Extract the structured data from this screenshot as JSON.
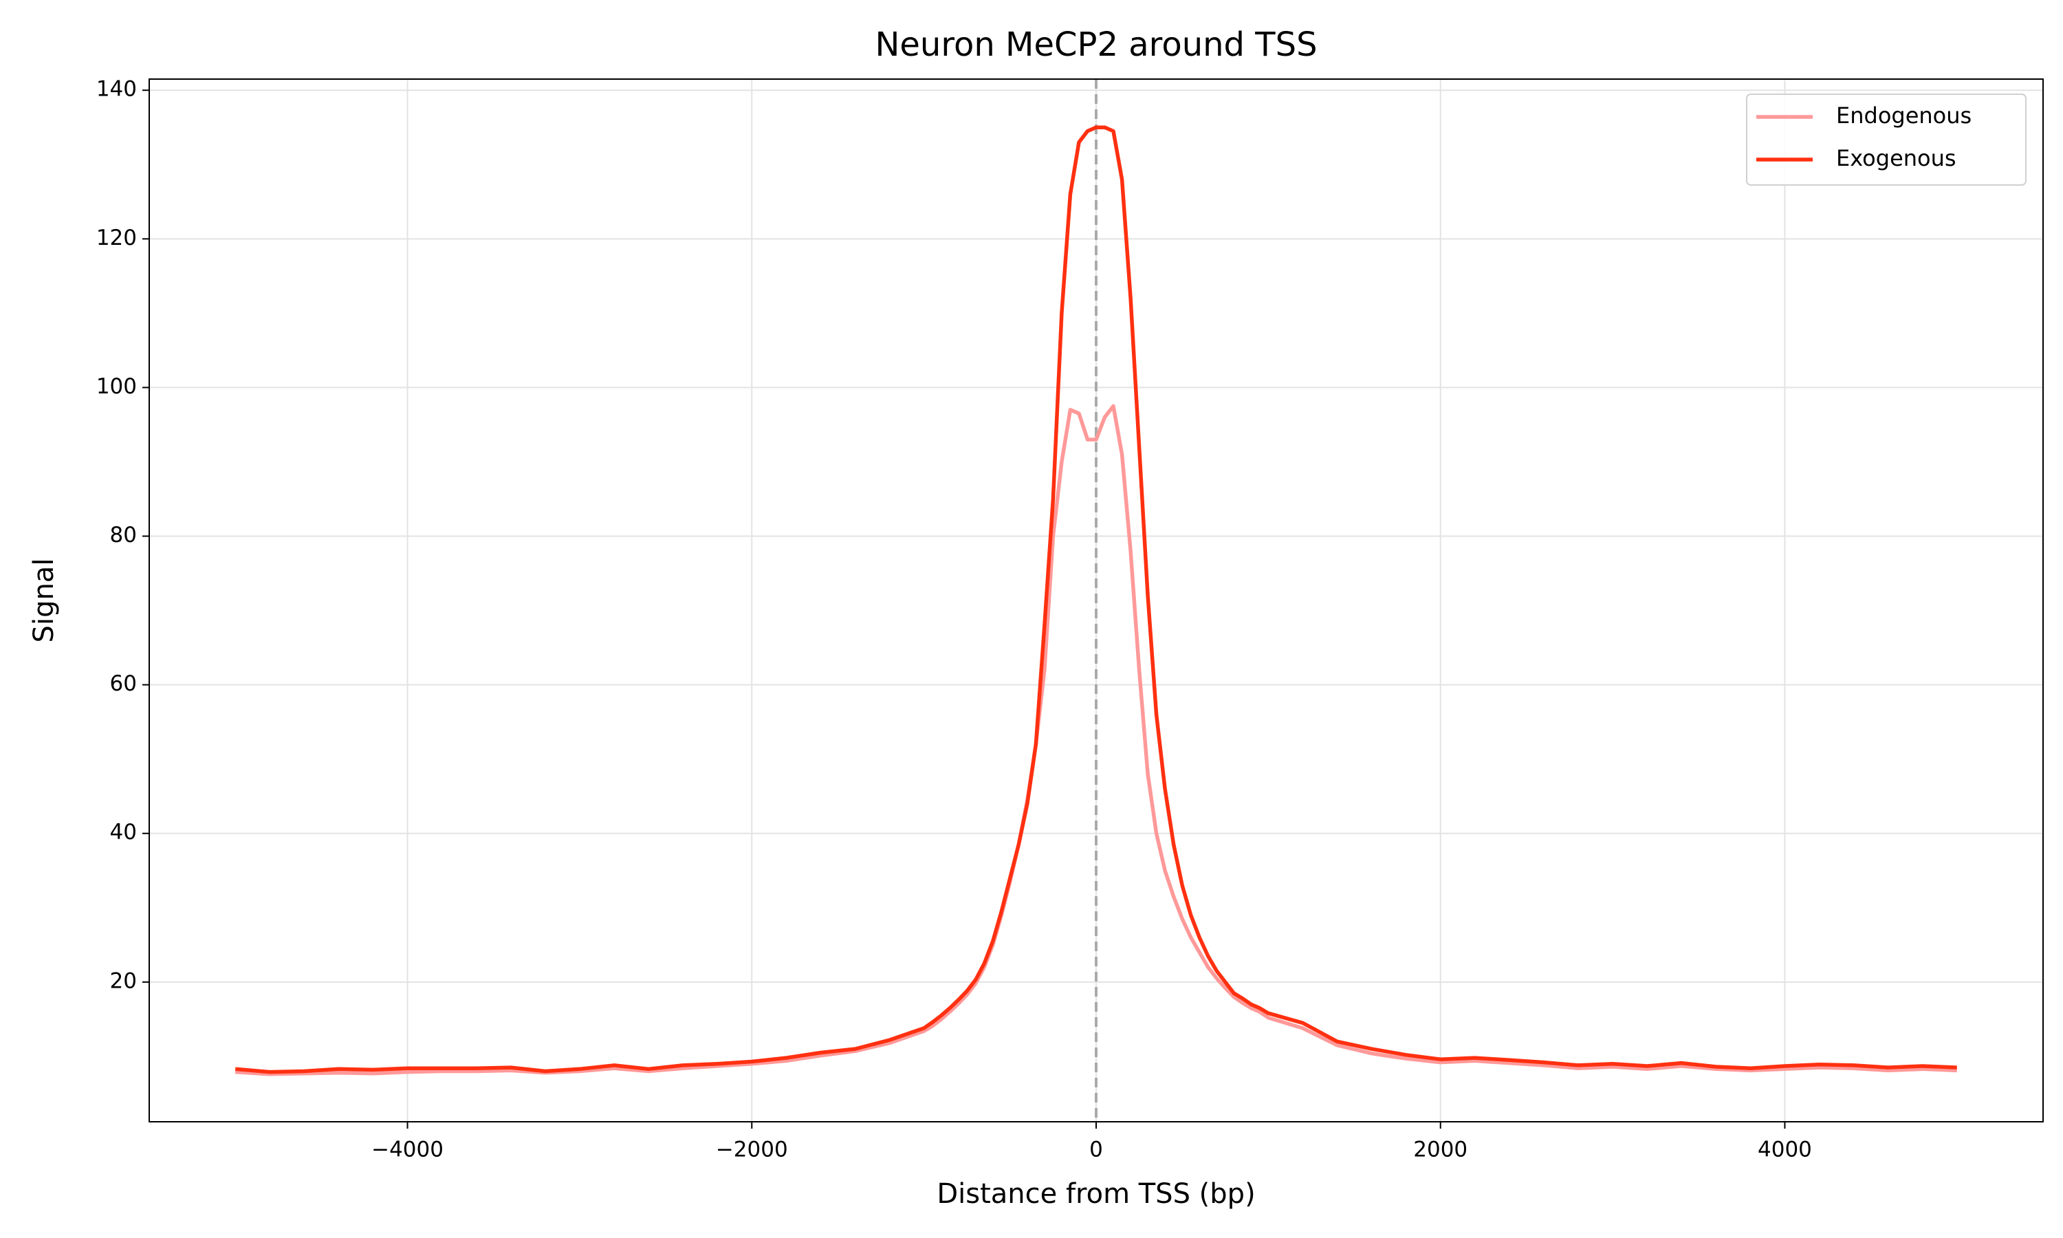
{
  "chart_data": {
    "type": "line",
    "title": "Neuron MeCP2 around TSS",
    "x_label": "Distance from TSS (bp)",
    "y_label": "Signal",
    "x": [
      -5000,
      -4800,
      -4600,
      -4400,
      -4200,
      -4000,
      -3800,
      -3600,
      -3400,
      -3200,
      -3000,
      -2800,
      -2600,
      -2400,
      -2200,
      -2000,
      -1800,
      -1600,
      -1400,
      -1200,
      -1000,
      -950,
      -900,
      -850,
      -800,
      -750,
      -700,
      -650,
      -600,
      -550,
      -500,
      -450,
      -400,
      -350,
      -300,
      -250,
      -200,
      -150,
      -100,
      -50,
      0,
      50,
      100,
      150,
      200,
      250,
      300,
      350,
      400,
      450,
      500,
      550,
      600,
      650,
      700,
      750,
      800,
      850,
      900,
      950,
      1000,
      1200,
      1400,
      1600,
      1800,
      2000,
      2200,
      2400,
      2600,
      2800,
      3000,
      3200,
      3400,
      3600,
      3800,
      4000,
      4200,
      4400,
      4600,
      4800,
      5000
    ],
    "series": [
      {
        "name": "Endogenous",
        "color": "#ff9999",
        "values": [
          7.9,
          7.6,
          7.7,
          7.8,
          7.7,
          7.9,
          8.0,
          8.0,
          8.1,
          7.8,
          8.0,
          8.4,
          8.0,
          8.4,
          8.7,
          9.0,
          9.4,
          10.1,
          10.7,
          11.8,
          13.4,
          14.1,
          15.0,
          16.0,
          17.1,
          18.3,
          19.8,
          22.0,
          25.0,
          29.0,
          33.5,
          38.5,
          44.5,
          52.0,
          62.0,
          80.0,
          90.0,
          97.0,
          96.5,
          93.0,
          93.0,
          96.0,
          97.5,
          91.0,
          78.0,
          62.0,
          48.0,
          40.0,
          35.0,
          31.5,
          28.5,
          26.0,
          24.0,
          22.0,
          20.5,
          19.2,
          18.0,
          17.2,
          16.5,
          16.0,
          15.2,
          13.8,
          11.5,
          10.4,
          9.7,
          9.2,
          9.4,
          9.1,
          8.8,
          8.4,
          8.6,
          8.3,
          8.7,
          8.3,
          8.1,
          8.3,
          8.5,
          8.4,
          8.1,
          8.3,
          8.1
        ]
      },
      {
        "name": "Exogenous",
        "color": "#ff3010",
        "values": [
          8.3,
          7.9,
          8.0,
          8.3,
          8.2,
          8.4,
          8.4,
          8.4,
          8.5,
          8.0,
          8.3,
          8.8,
          8.3,
          8.8,
          9.0,
          9.3,
          9.8,
          10.5,
          11.0,
          12.2,
          13.8,
          14.6,
          15.5,
          16.5,
          17.6,
          18.8,
          20.3,
          22.5,
          25.5,
          29.5,
          34.0,
          38.5,
          44.0,
          52.0,
          68.0,
          85.0,
          110.0,
          126.0,
          133.0,
          134.5,
          135.0,
          135.0,
          134.5,
          128.0,
          112.0,
          92.0,
          72.0,
          56.0,
          46.0,
          38.5,
          33.0,
          29.0,
          26.0,
          23.5,
          21.5,
          20.0,
          18.5,
          17.8,
          17.0,
          16.5,
          15.8,
          14.5,
          12.0,
          11.0,
          10.2,
          9.6,
          9.8,
          9.5,
          9.2,
          8.8,
          9.0,
          8.7,
          9.1,
          8.6,
          8.4,
          8.7,
          8.9,
          8.8,
          8.5,
          8.7,
          8.5
        ]
      }
    ],
    "reference_line_x": 0,
    "xlim": [
      -5500,
      5500
    ],
    "ylim": [
      1.2,
      141.5
    ],
    "xticks": [
      {
        "value": -4000,
        "label": "−4000"
      },
      {
        "value": -2000,
        "label": "−2000"
      },
      0,
      2000,
      4000
    ],
    "yticks": [
      20,
      40,
      60,
      80,
      100,
      120,
      140
    ],
    "grid": true,
    "legend": "upper right"
  }
}
